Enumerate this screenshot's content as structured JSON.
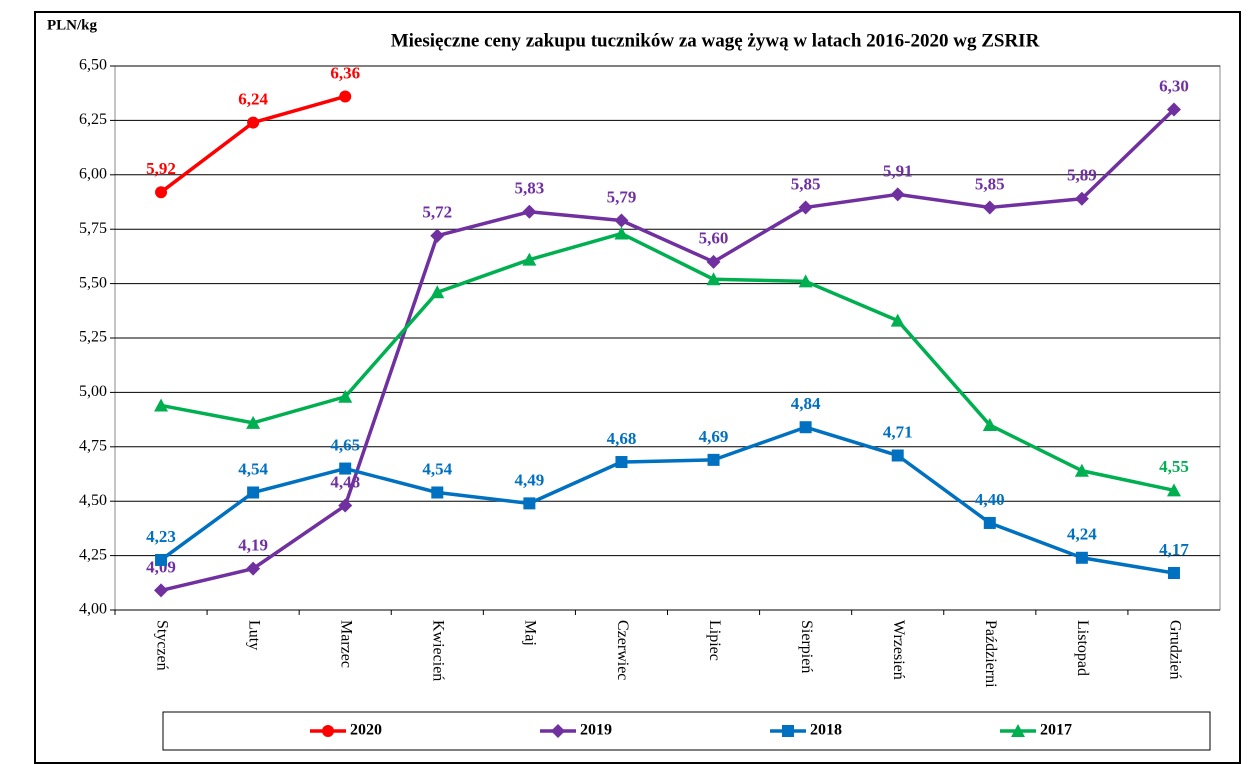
{
  "chart_data": {
    "type": "line",
    "title": "Miesięczne ceny zakupu tuczników za wagę żywą w latach 2016-2020  wg ZSRIR",
    "y_label": "PLN/kg",
    "categories": [
      "Styczeń",
      "Luty",
      "Marzec",
      "Kwiecień",
      "Maj",
      "Czerwiec",
      "Lipiec",
      "Sierpień",
      "Wrzesień",
      "Październi",
      "Listopad",
      "Grudzień"
    ],
    "ylim": [
      4.0,
      6.5
    ],
    "yticks": [
      {
        "value": 4.0,
        "label": "4,00"
      },
      {
        "value": 4.25,
        "label": "4,25"
      },
      {
        "value": 4.5,
        "label": "4,50"
      },
      {
        "value": 4.75,
        "label": "4,75"
      },
      {
        "value": 5.0,
        "label": "5,00"
      },
      {
        "value": 5.25,
        "label": "5,25"
      },
      {
        "value": 5.5,
        "label": "5,50"
      },
      {
        "value": 5.75,
        "label": "5,75"
      },
      {
        "value": 6.0,
        "label": "6,00"
      },
      {
        "value": 6.25,
        "label": "6,25"
      },
      {
        "value": 6.5,
        "label": "6,50"
      }
    ],
    "grid": true,
    "legend": "bottom",
    "series": [
      {
        "name": "2020",
        "color": "#ff0000",
        "marker": "circle",
        "values": [
          5.92,
          6.24,
          6.36,
          null,
          null,
          null,
          null,
          null,
          null,
          null,
          null,
          null
        ],
        "value_labels": [
          "5,92",
          "6,24",
          "6,36",
          null,
          null,
          null,
          null,
          null,
          null,
          null,
          null,
          null
        ]
      },
      {
        "name": "2019",
        "color": "#7030a0",
        "marker": "diamond",
        "values": [
          4.09,
          4.19,
          4.48,
          5.72,
          5.83,
          5.79,
          5.6,
          5.85,
          5.91,
          5.85,
          5.89,
          6.3
        ],
        "value_labels": [
          "4,09",
          "4,19",
          "4,48",
          "5,72",
          "5,83",
          "5,79",
          "5,60",
          "5,85",
          "5,91",
          "5,85",
          "5,89",
          "6,30"
        ]
      },
      {
        "name": "2018",
        "color": "#0070c0",
        "marker": "square",
        "values": [
          4.23,
          4.54,
          4.65,
          4.54,
          4.49,
          4.68,
          4.69,
          4.84,
          4.71,
          4.4,
          4.24,
          4.17
        ],
        "value_labels": [
          "4,23",
          "4,54",
          "4,65",
          "4,54",
          "4,49",
          "4,68",
          "4,69",
          "4,84",
          "4,71",
          "4,40",
          "4,24",
          "4,17"
        ]
      },
      {
        "name": "2017",
        "color": "#00b050",
        "marker": "triangle",
        "values": [
          4.94,
          4.86,
          4.98,
          5.46,
          5.61,
          5.73,
          5.52,
          5.51,
          5.33,
          4.85,
          4.64,
          4.55
        ],
        "value_labels": [
          null,
          null,
          null,
          null,
          null,
          null,
          null,
          null,
          null,
          null,
          null,
          "4,55"
        ]
      }
    ]
  }
}
